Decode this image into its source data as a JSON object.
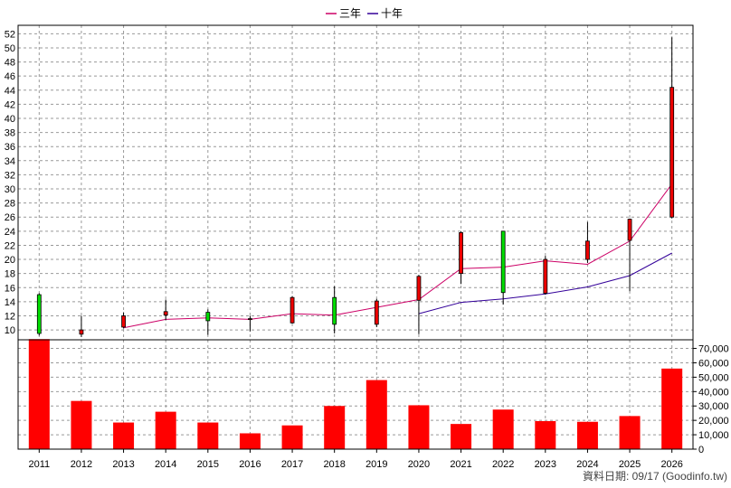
{
  "legend": {
    "items": [
      {
        "label": "三年",
        "color": "#cc0066"
      },
      {
        "label": "十年",
        "color": "#330099"
      }
    ]
  },
  "footer": {
    "source_text": "資料日期: 09/17 (Goodinfo.tw)"
  },
  "colors": {
    "up_candle": "#ee0000",
    "down_candle": "#00dd00",
    "volume_bar": "#ff0000",
    "grid": "#999999"
  },
  "chart_data": [
    {
      "type": "candlestick",
      "title": "",
      "categories": [
        "2011",
        "2012",
        "2013",
        "2014",
        "2015",
        "2016",
        "2017",
        "2018",
        "2019",
        "2020",
        "2021",
        "2022",
        "2023",
        "2024",
        "2025",
        "2026"
      ],
      "ohlc": [
        {
          "open": 15.0,
          "high": 15.2,
          "low": 9.2,
          "close": 9.5
        },
        {
          "open": 9.4,
          "high": 12.0,
          "low": 9.0,
          "close": 10.0
        },
        {
          "open": 10.4,
          "high": 12.5,
          "low": 10.2,
          "close": 12.0
        },
        {
          "open": 12.1,
          "high": 14.3,
          "low": 11.4,
          "close": 12.6
        },
        {
          "open": 12.5,
          "high": 12.9,
          "low": 9.3,
          "close": 11.3
        },
        {
          "open": 11.5,
          "high": 12.0,
          "low": 9.8,
          "close": 11.6
        },
        {
          "open": 11.0,
          "high": 14.8,
          "low": 10.9,
          "close": 14.6
        },
        {
          "open": 14.6,
          "high": 16.2,
          "low": 9.5,
          "close": 10.8
        },
        {
          "open": 10.8,
          "high": 14.4,
          "low": 10.4,
          "close": 14.1
        },
        {
          "open": 14.2,
          "high": 17.8,
          "low": 9.4,
          "close": 17.6
        },
        {
          "open": 18.0,
          "high": 24.0,
          "low": 16.5,
          "close": 23.8
        },
        {
          "open": 24.0,
          "high": 24.0,
          "low": 13.6,
          "close": 15.3
        },
        {
          "open": 15.2,
          "high": 20.5,
          "low": 15.0,
          "close": 20.0
        },
        {
          "open": 20.0,
          "high": 25.3,
          "low": 19.5,
          "close": 22.6
        },
        {
          "open": 22.7,
          "high": 25.8,
          "low": 15.5,
          "close": 25.7
        },
        {
          "open": 26.0,
          "high": 51.5,
          "low": 25.8,
          "close": 44.4
        }
      ],
      "series": [
        {
          "name": "三年",
          "values": [
            null,
            null,
            10.3,
            11.5,
            11.7,
            11.5,
            12.3,
            12.1,
            13.2,
            14.3,
            18.7,
            18.9,
            19.8,
            19.3,
            22.6,
            30.7
          ]
        },
        {
          "name": "十年",
          "values": [
            null,
            null,
            null,
            null,
            null,
            null,
            null,
            null,
            null,
            12.3,
            13.9,
            14.4,
            15.1,
            16.1,
            17.7,
            20.9
          ]
        }
      ],
      "y_ticks": [
        10,
        12,
        14,
        16,
        18,
        20,
        22,
        24,
        26,
        28,
        30,
        32,
        34,
        36,
        38,
        40,
        42,
        44,
        46,
        48,
        50,
        52
      ],
      "ylim": [
        8.6,
        53.2
      ],
      "grid": true,
      "legend_position": "top-center"
    },
    {
      "type": "bar",
      "title": "",
      "categories": [
        "2011",
        "2012",
        "2013",
        "2014",
        "2015",
        "2016",
        "2017",
        "2018",
        "2019",
        "2020",
        "2021",
        "2022",
        "2023",
        "2024",
        "2025",
        "2026"
      ],
      "values": [
        76500,
        33500,
        18500,
        26000,
        18500,
        11000,
        16500,
        30000,
        48000,
        30500,
        17500,
        27500,
        19500,
        19000,
        23000,
        56000
      ],
      "y_ticks": [
        0,
        10000,
        20000,
        30000,
        40000,
        50000,
        60000,
        70000
      ],
      "y_tick_labels": [
        "0",
        "10,000",
        "20,000",
        "30,000",
        "40,000",
        "50,000",
        "60,000",
        "70,000"
      ],
      "ylim": [
        0,
        76000
      ],
      "grid": true
    }
  ]
}
